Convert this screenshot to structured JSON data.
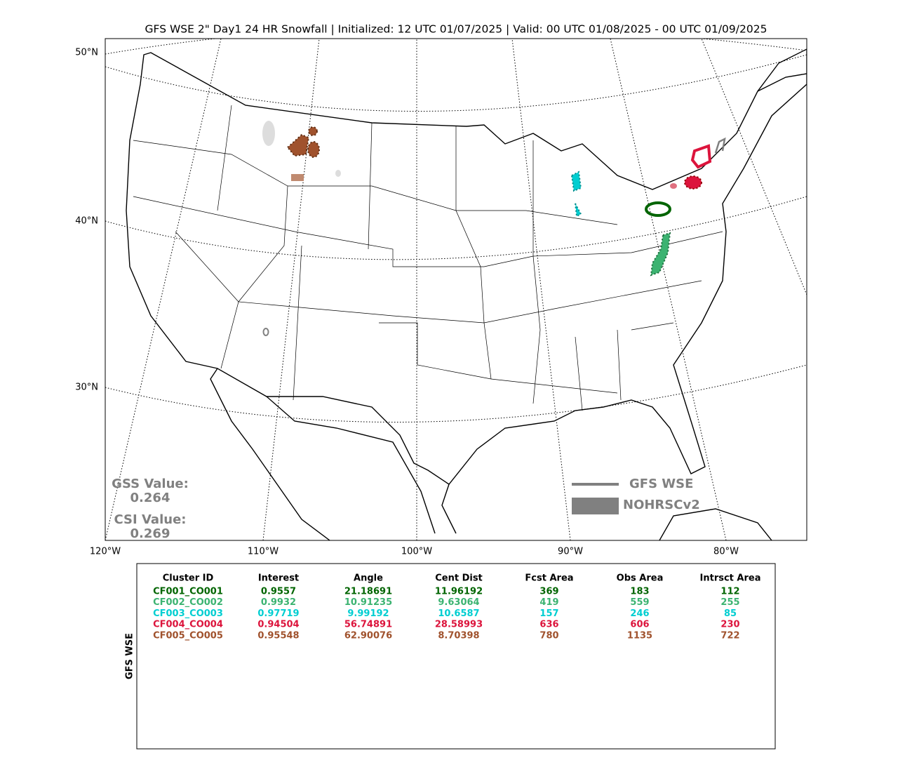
{
  "title": "GFS WSE 2\" Day1 24 HR Snowfall | Initialized: 12 UTC 01/07/2025 | Valid: 00 UTC 01/08/2025 - 00 UTC 01/09/2025",
  "map": {
    "lat_labels": [
      "50°N",
      "40°N",
      "30°N"
    ],
    "lon_labels": [
      "120°W",
      "110°W",
      "100°W",
      "90°W",
      "80°W"
    ],
    "legend": [
      {
        "name": "GFS WSE",
        "color": "#808080"
      },
      {
        "name": "NOHRSCv2",
        "color": "#808080"
      }
    ],
    "scores": [
      {
        "label": "GSS Value:",
        "value": 0.264
      },
      {
        "label": "CSI Value:",
        "value": 0.269
      }
    ]
  },
  "table": {
    "ylabel": "GFS WSE",
    "columns": [
      "Cluster ID",
      "Interest",
      "Angle",
      "Cent Dist",
      "Fcst Area",
      "Obs Area",
      "Intrsct Area"
    ],
    "row_colors": [
      "#006400",
      "#3cb371",
      "#00ced1",
      "#dc143c",
      "#a0522d"
    ],
    "rows": [
      [
        "CF001_CO001",
        0.9557,
        21.18691,
        11.96192,
        369,
        183,
        112
      ],
      [
        "CF002_CO002",
        0.9932,
        10.91235,
        9.63064,
        419,
        559,
        255
      ],
      [
        "CF003_CO003",
        0.97719,
        9.99192,
        10.6587,
        157,
        246,
        85
      ],
      [
        "CF004_CO004",
        0.94504,
        56.74891,
        28.58993,
        636,
        606,
        230
      ],
      [
        "CF005_CO005",
        0.95548,
        62.90076,
        8.70398,
        780,
        1135,
        722
      ]
    ]
  }
}
